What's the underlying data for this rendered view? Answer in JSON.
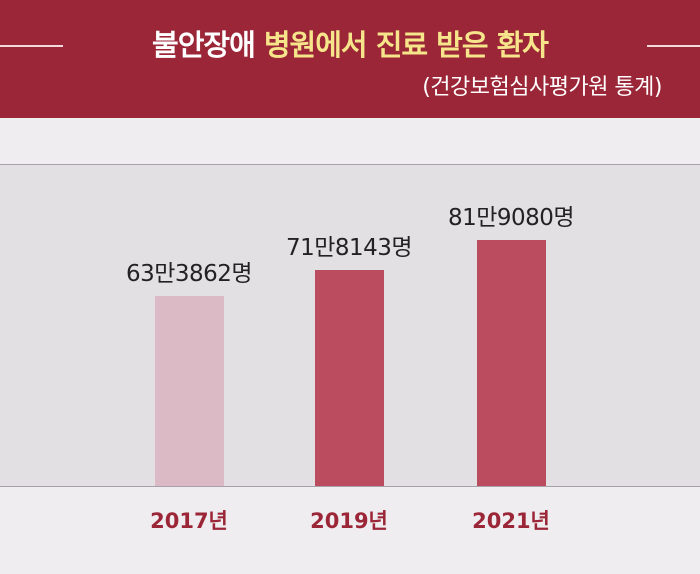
{
  "header": {
    "title_white": "불안장애",
    "title_yellow": "병원에서 진료 받은 환자",
    "source": "(건강보험심사평가원 통계)"
  },
  "colors": {
    "header_bg": "#9b2637",
    "title_highlight": "#f6e58a",
    "bar_light": "#dbbac6",
    "bar_dark": "#bb4c5f",
    "year_label": "#9b2637"
  },
  "chart_data": {
    "type": "bar",
    "title": "불안장애 병원에서 진료 받은 환자",
    "subtitle": "(건강보험심사평가원 통계)",
    "categories": [
      "2017년",
      "2019년",
      "2021년"
    ],
    "values": [
      633862,
      718143,
      819080
    ],
    "data_labels": [
      "63만3862명",
      "71만8143명",
      "81만9080명"
    ],
    "ylim": [
      0,
      819080
    ],
    "grid": false,
    "legend": "none"
  }
}
